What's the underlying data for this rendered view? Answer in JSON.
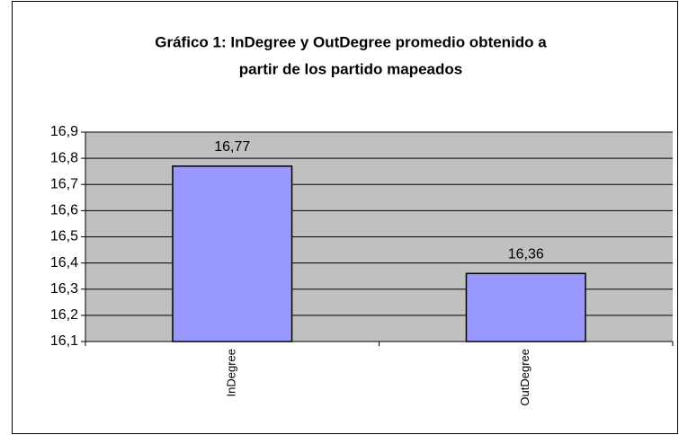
{
  "chart_data": {
    "type": "bar",
    "title": [
      "Gráfico 1: InDegree y OutDegree promedio obtenido a",
      "partir de los partido mapeados"
    ],
    "categories": [
      "InDegree",
      "OutDegree"
    ],
    "values": [
      16.77,
      16.36
    ],
    "value_labels": [
      "16,77",
      "16,36"
    ],
    "color": "#9999ff",
    "ylim": [
      16.1,
      16.9
    ],
    "yticks": [
      {
        "value": 16.1,
        "label": "16,1"
      },
      {
        "value": 16.2,
        "label": "16,2"
      },
      {
        "value": 16.3,
        "label": "16,3"
      },
      {
        "value": 16.4,
        "label": "16,4"
      },
      {
        "value": 16.5,
        "label": "16,5"
      },
      {
        "value": 16.6,
        "label": "16,6"
      },
      {
        "value": 16.7,
        "label": "16,7"
      },
      {
        "value": 16.8,
        "label": "16,8"
      },
      {
        "value": 16.9,
        "label": "16,9"
      }
    ],
    "grid": true
  }
}
